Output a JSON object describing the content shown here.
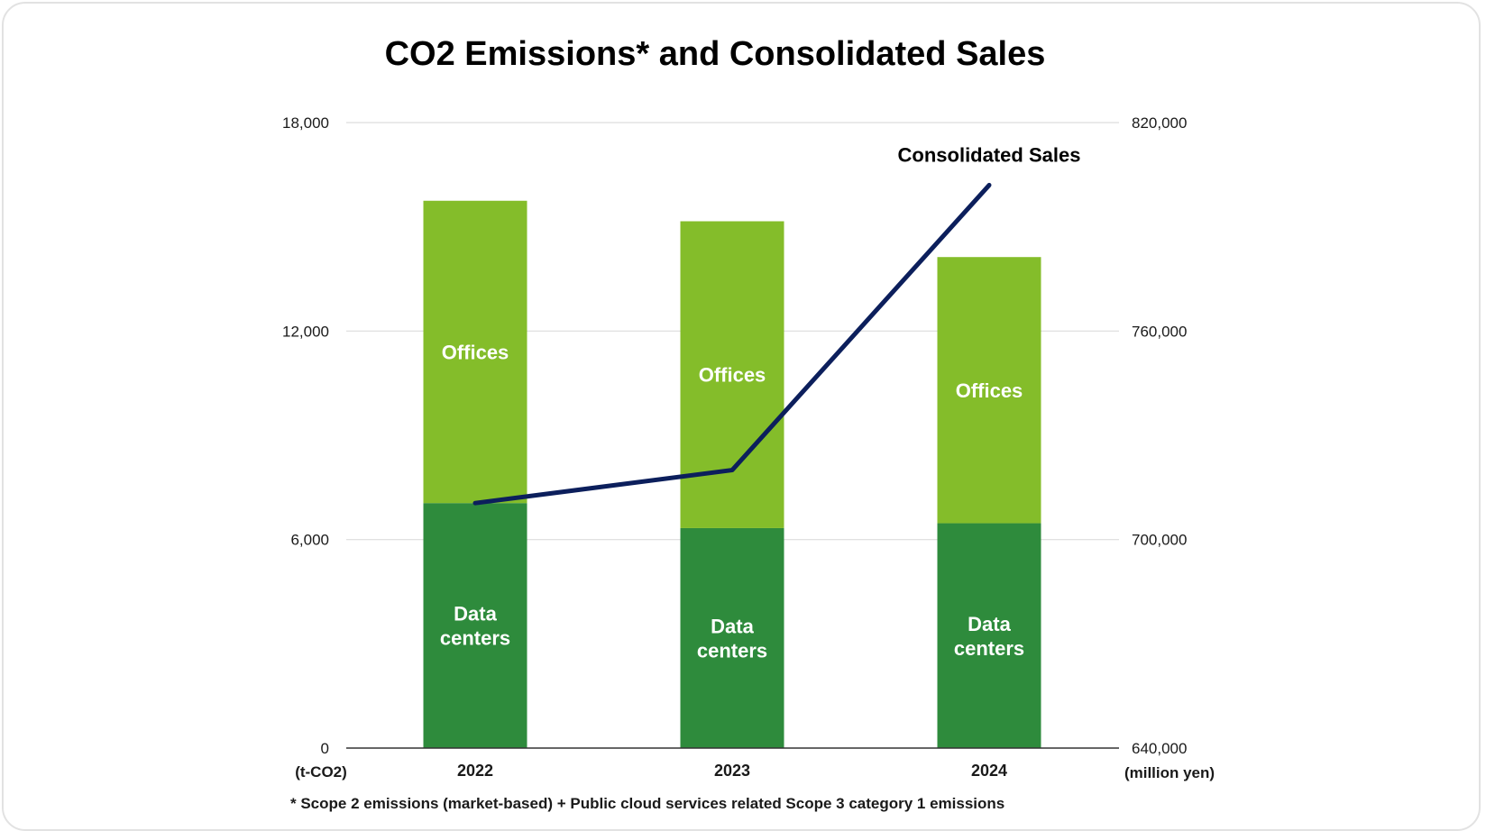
{
  "chart_data": {
    "type": "bar",
    "stacked": true,
    "title": "CO2 Emissions* and Consolidated Sales",
    "categories": [
      "2022",
      "2023",
      "2024"
    ],
    "left_axis": {
      "unit": "(t-CO2)",
      "range": [
        0,
        18000
      ],
      "ticks": [
        0,
        6000,
        12000,
        18000
      ],
      "tick_labels": [
        "0",
        "6,000",
        "12,000",
        "18,000"
      ]
    },
    "right_axis": {
      "unit": "(million yen)",
      "range": [
        640000,
        820000
      ],
      "ticks": [
        640000,
        700000,
        760000,
        820000
      ],
      "tick_labels": [
        "640,000",
        "700,000",
        "760,000",
        "820,000"
      ]
    },
    "series": [
      {
        "name": "Data centers",
        "label_lines": [
          "Data",
          "centers"
        ],
        "type": "bar",
        "axis": "left",
        "color": "#2e8b3c",
        "values": [
          7050,
          6330,
          6470
        ]
      },
      {
        "name": "Offices",
        "label_lines": [
          "Offices"
        ],
        "type": "bar",
        "axis": "left",
        "color": "#84bd2a",
        "values": [
          8700,
          8830,
          7660
        ]
      },
      {
        "name": "Consolidated Sales",
        "label_lines": [
          "Consolidated Sales"
        ],
        "type": "line",
        "axis": "right",
        "color": "#0c1f5c",
        "values": [
          710500,
          720000,
          802000
        ]
      }
    ],
    "grid": true,
    "legend": "none",
    "footnote": "* Scope 2 emissions (market-based) + Public cloud services related Scope 3 category 1 emissions"
  }
}
